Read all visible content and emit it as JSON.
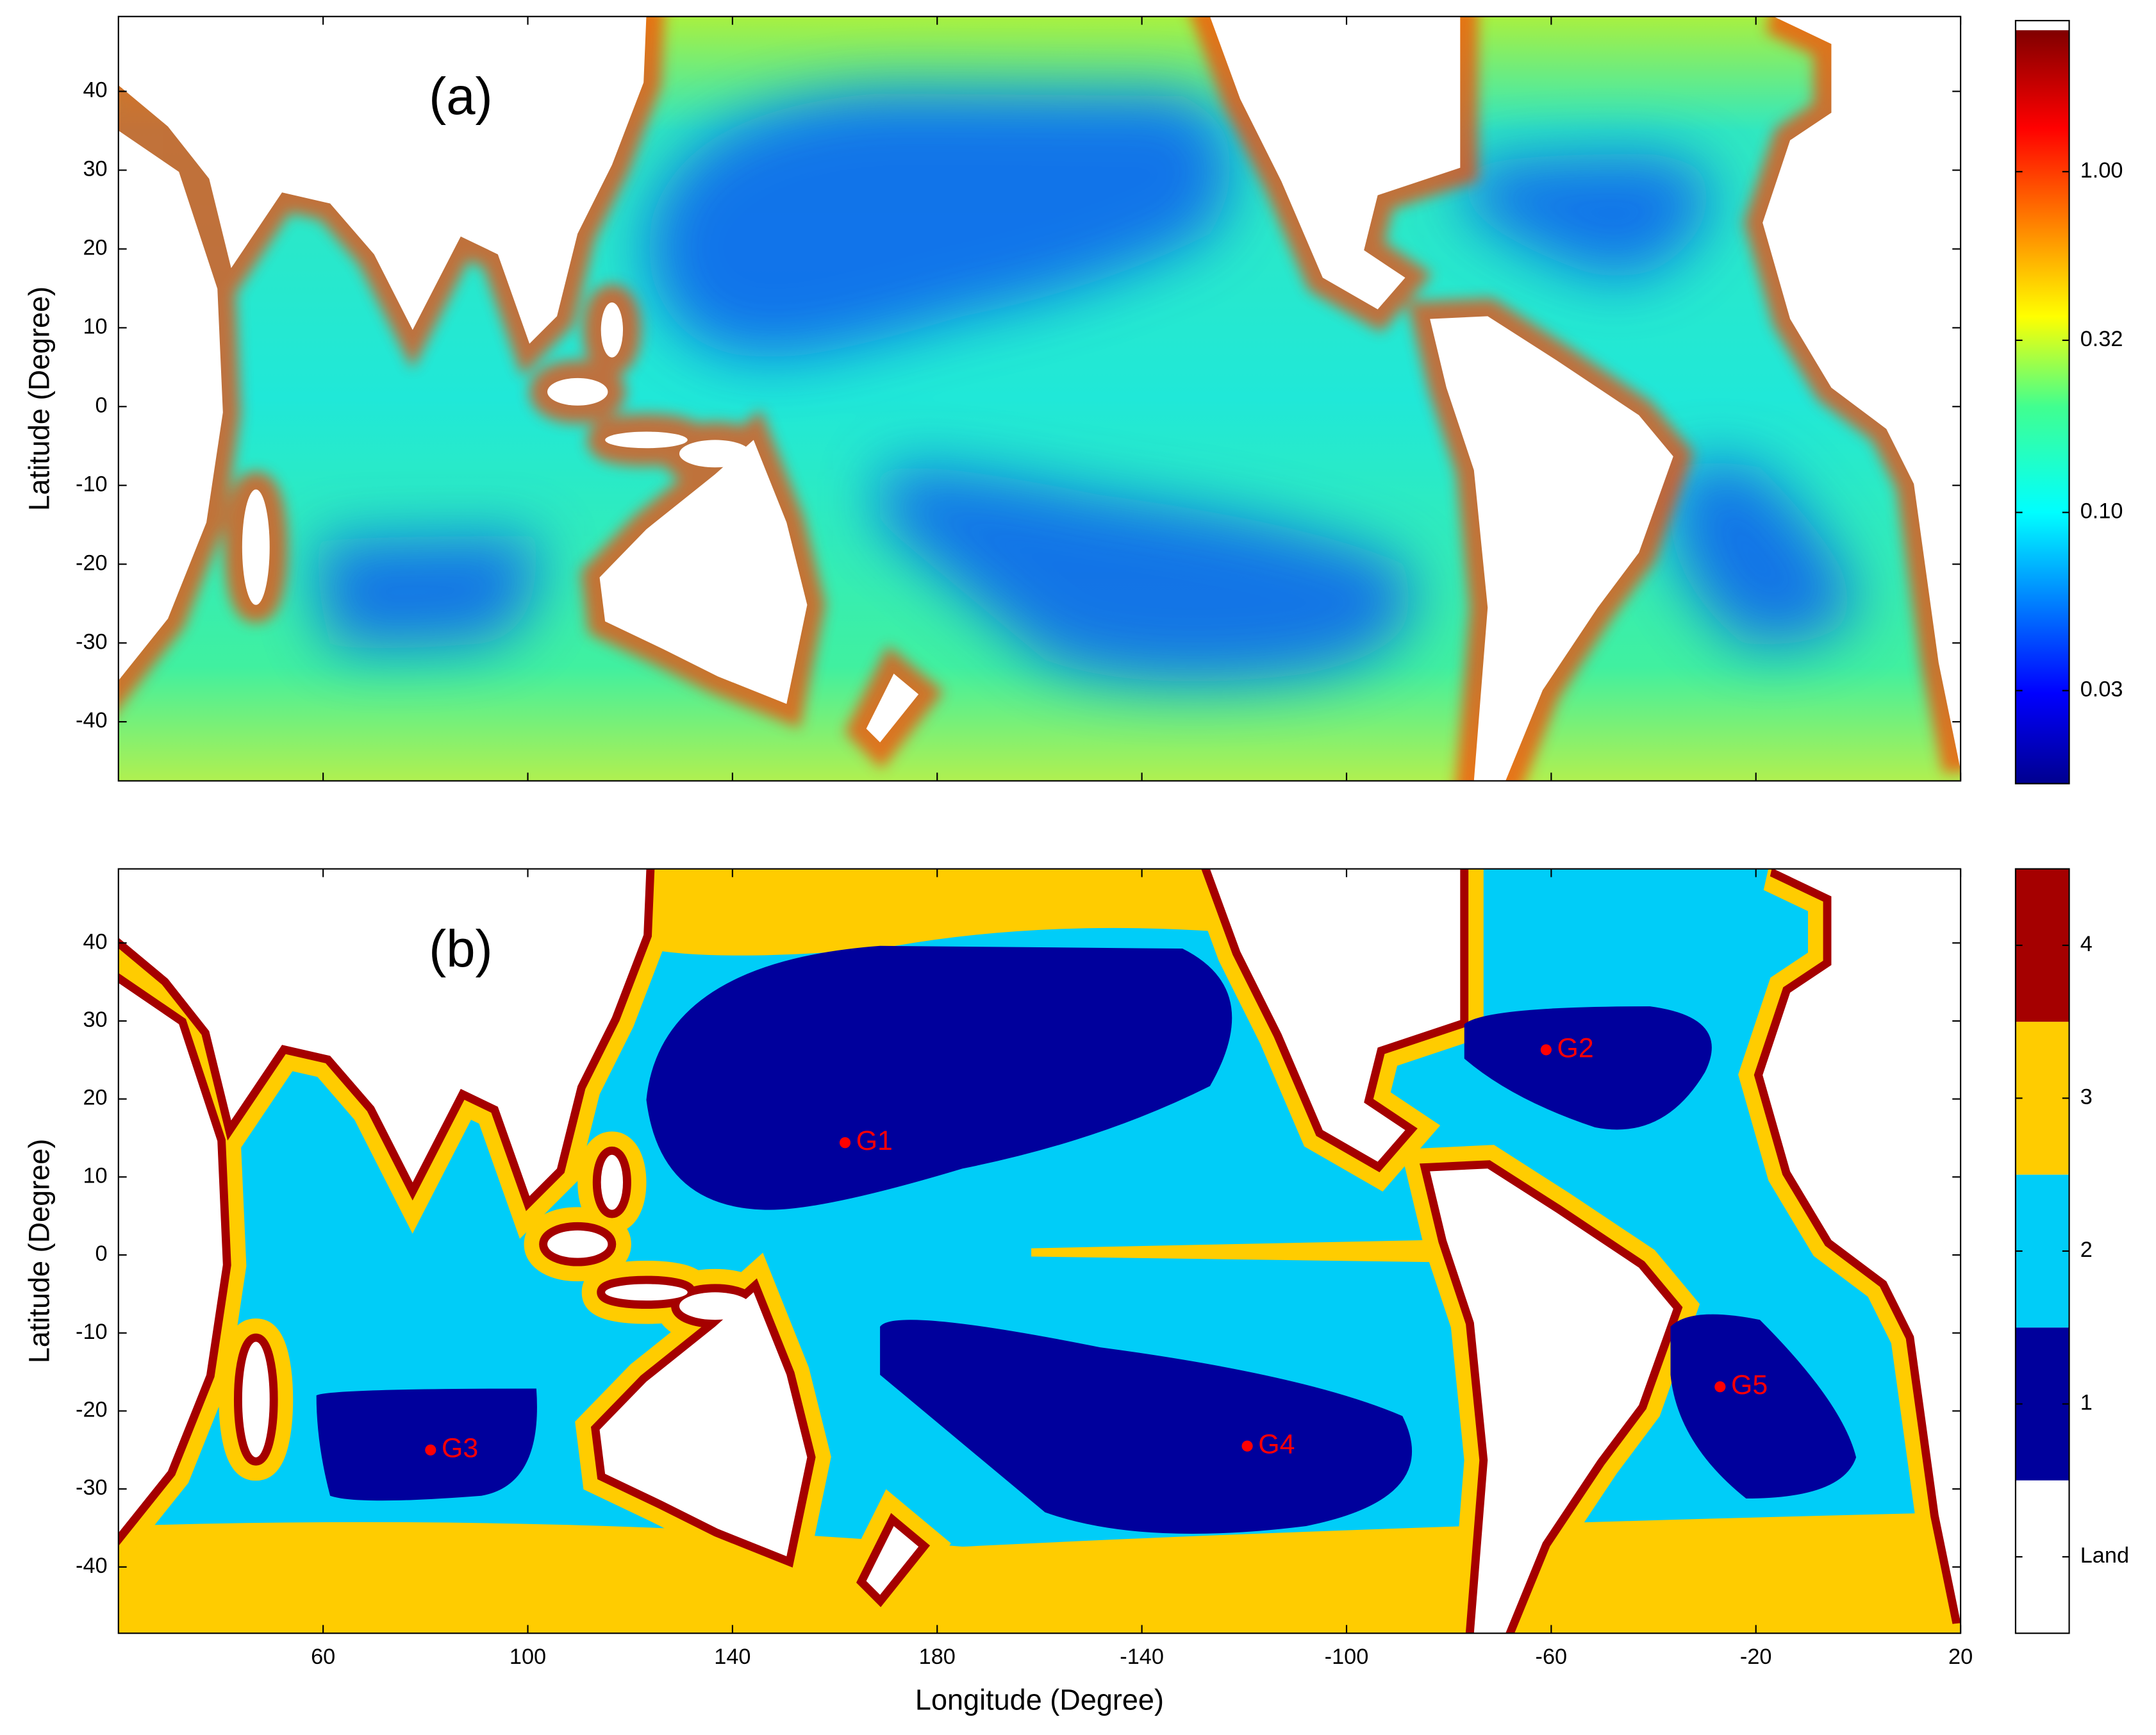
{
  "chart_data": [
    {
      "type": "map",
      "panel_label": "(a)",
      "y_label": "Latitude (Degree)",
      "xlim": [
        20,
        380
      ],
      "ylim": [
        -47.5,
        49.5
      ],
      "yticks": [
        -40,
        -30,
        -20,
        -10,
        0,
        10,
        20,
        30,
        40
      ],
      "colorbar": {
        "scale": "log",
        "lim": [
          0.016,
          2.6
        ],
        "ticks": [
          0.03,
          {
            "value": 0.1,
            "label": "0.10"
          },
          0.32,
          {
            "value": 1,
            "label": "1.00"
          }
        ]
      }
    },
    {
      "type": "map",
      "panel_label": "(b)",
      "x_label": "Longitude (Degree)",
      "y_label": "Latitude (Degree)",
      "xlim": [
        20,
        380
      ],
      "ylim": [
        -48.5,
        49.5
      ],
      "xticks": [
        60,
        100,
        140,
        180,
        {
          "value": 220,
          "label": "-140"
        },
        {
          "value": 260,
          "label": "-100"
        },
        {
          "value": 300,
          "label": "-60"
        },
        {
          "value": 340,
          "label": "-20"
        },
        {
          "value": 380,
          "label": "20"
        }
      ],
      "yticks": [
        -40,
        -30,
        -20,
        -10,
        0,
        10,
        20,
        30,
        40
      ],
      "colorbar": {
        "categories": [
          "Land",
          "1",
          "2",
          "3",
          "4"
        ],
        "colors": [
          "#ffffff",
          "#00009c",
          "#00cdf8",
          "#ffcc00",
          "#a50000"
        ]
      },
      "points": {
        "labels": [
          "G1",
          "G2",
          "G3",
          "G4",
          "G5"
        ],
        "x": [
          162,
          299,
          81,
          240.6,
          333
        ],
        "y": [
          14.4,
          26.3,
          -25,
          -24.5,
          -16.9
        ],
        "color": "#ff0000"
      }
    }
  ]
}
